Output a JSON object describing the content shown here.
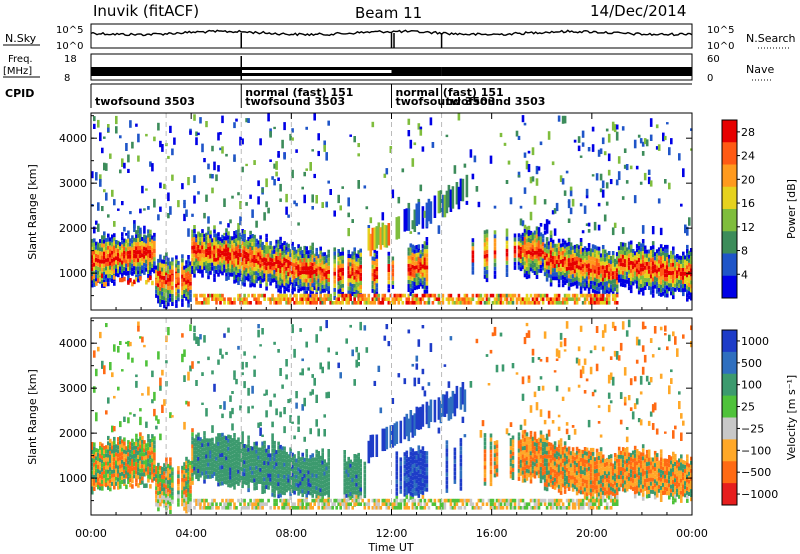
{
  "header": {
    "title": "Inuvik (fitACF)",
    "beam": "Beam 11",
    "date": "14/Dec/2014"
  },
  "top_panels": {
    "nsky": {
      "label": "N.Sky",
      "top": "10^5",
      "bottom": "10^0",
      "right_label": "N.Search"
    },
    "freq": {
      "label_line1": "Freq.",
      "label_line2": "[MHz]",
      "top": "18",
      "bottom": "8",
      "right_top": "60",
      "right_bottom": "0",
      "right_label": "Nave"
    },
    "cpid": {
      "label": "CPID",
      "entries": [
        {
          "start_hour": 0,
          "line1": "",
          "line2": "twofsound 3503"
        },
        {
          "start_hour": 6,
          "line1": "normal (fast) 151",
          "line2": "twofsound 3503"
        },
        {
          "start_hour": 12,
          "line1": "normal (fast) 151",
          "line2": "twofsound 3503"
        },
        {
          "start_hour": 14,
          "line1": "",
          "line2": "twofsound 3503"
        }
      ]
    }
  },
  "chart_data": [
    {
      "type": "heatmap",
      "quantity": "Power",
      "ylabel": "Slant Range [km]",
      "xlabel": "Time UT",
      "x_ticks": [
        "00:00",
        "04:00",
        "08:00",
        "12:00",
        "16:00",
        "20:00",
        "00:00"
      ],
      "xlim_hours": [
        0,
        24
      ],
      "y_ticks": [
        1000,
        2000,
        3000,
        4000
      ],
      "ylim_km": [
        180,
        4560
      ],
      "colorbar": {
        "label": "Power [dB]",
        "ticks": [
          4,
          8,
          12,
          16,
          20,
          24,
          28
        ],
        "range": [
          0,
          30
        ],
        "colors": [
          "#0000e6",
          "#1f55c8",
          "#3c8c5a",
          "#7fbd3c",
          "#e6d21e",
          "#ff9a1e",
          "#ff5a14",
          "#e60000"
        ]
      }
    },
    {
      "type": "heatmap",
      "quantity": "Velocity",
      "ylabel": "Slant Range [km]",
      "xlabel": "Time UT",
      "x_ticks": [
        "00:00",
        "04:00",
        "08:00",
        "12:00",
        "16:00",
        "20:00",
        "00:00"
      ],
      "xlim_hours": [
        0,
        24
      ],
      "y_ticks": [
        1000,
        2000,
        3000,
        4000
      ],
      "ylim_km": [
        180,
        4560
      ],
      "colorbar": {
        "label": "Velocity [m s⁻¹]",
        "ticks": [
          "1000",
          "500",
          "100",
          "25",
          "−25",
          "−100",
          "−500",
          "−1000"
        ],
        "colors": [
          "#1e3cc8",
          "#2f6fbf",
          "#3c9a6e",
          "#4fc23a",
          "#c8c8c8",
          "#ffa828",
          "#ff6a14",
          "#e61e1e"
        ]
      }
    }
  ]
}
